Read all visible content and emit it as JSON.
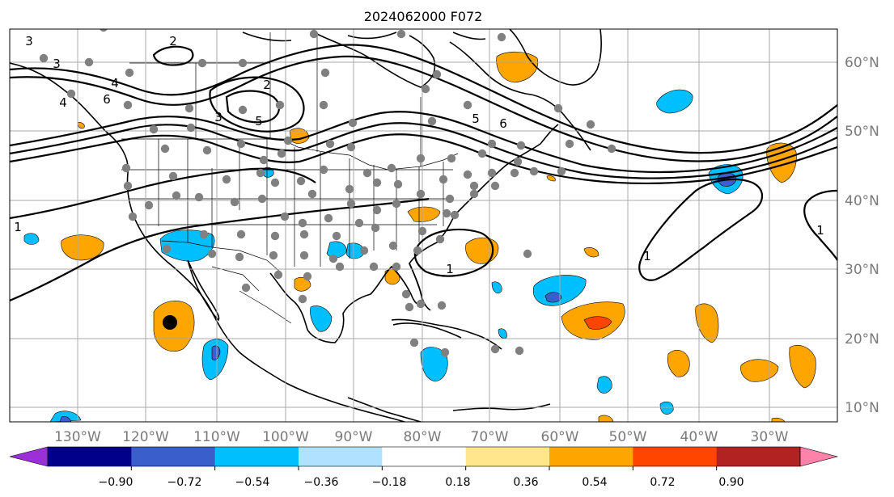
{
  "title": "2024062000 F072",
  "lon_labels": [
    "130°W",
    "120°W",
    "110°W",
    "100°W",
    "90°W",
    "80°W",
    "70°W",
    "60°W",
    "50°W",
    "40°W",
    "30°W"
  ],
  "lat_labels": [
    "60°N",
    "50°N",
    "40°N",
    "30°N",
    "20°N",
    "10°N"
  ],
  "colorbar": {
    "tick_labels": [
      "−0.90",
      "−0.72",
      "−0.54",
      "−0.36",
      "−0.18",
      "0.18",
      "0.36",
      "0.54",
      "0.72",
      "0.90"
    ],
    "colors": [
      "#9b30d9",
      "#00008b",
      "#3a5fcd",
      "#00bfff",
      "#b0e2ff",
      "#ffffff",
      "#ffe68a",
      "#ffa500",
      "#ff4500",
      "#b22222",
      "#ff82ab"
    ]
  },
  "contour_labels": [
    "3",
    "2",
    "4",
    "6",
    "3",
    "5",
    "2",
    "6",
    "5",
    "4",
    "3",
    "1",
    "1",
    "1",
    "1"
  ],
  "colors": {
    "land_outline": "#000000",
    "grid": "#a9a9a9",
    "station_dot": "#808080",
    "marker": "#000000"
  }
}
